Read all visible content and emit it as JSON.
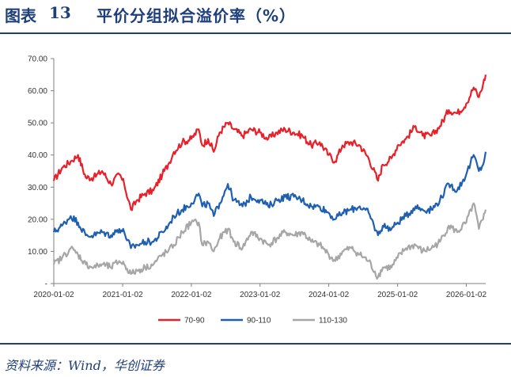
{
  "header": {
    "label": "图表",
    "number": "13",
    "title": "平价分组拟合溢价率（%）"
  },
  "source": "资料来源：Wind，华创证券",
  "colors": {
    "accent": "#1f3f7a"
  },
  "chart_data": {
    "type": "line",
    "title": "",
    "xlabel": "",
    "ylabel": "",
    "ylim": [
      0,
      70
    ],
    "y_ticks": [
      "-",
      "10.00",
      "20.00",
      "30.00",
      "40.00",
      "50.00",
      "60.00",
      "70.00"
    ],
    "x_ticks": [
      "2020-01-02",
      "2021-01-02",
      "2022-01-02",
      "2023-01-02",
      "2024-01-02",
      "2025-01-02",
      "2026-01-02"
    ],
    "x_range": [
      "2020-01-02",
      "2026-04-15"
    ],
    "grid": false,
    "legend_position": "bottom",
    "series": [
      {
        "name": "70-90",
        "color": "#e8202a",
        "points": [
          [
            "2020-01-02",
            32
          ],
          [
            "2020-02-15",
            36
          ],
          [
            "2020-04-01",
            38
          ],
          [
            "2020-05-10",
            40
          ],
          [
            "2020-06-20",
            33
          ],
          [
            "2020-08-01",
            33
          ],
          [
            "2020-09-15",
            35
          ],
          [
            "2020-11-01",
            31
          ],
          [
            "2020-12-15",
            34
          ],
          [
            "2021-01-10",
            31
          ],
          [
            "2021-02-15",
            23
          ],
          [
            "2021-03-20",
            26
          ],
          [
            "2021-05-01",
            28
          ],
          [
            "2021-06-15",
            29
          ],
          [
            "2021-08-01",
            34
          ],
          [
            "2021-09-01",
            37
          ],
          [
            "2021-10-01",
            41
          ],
          [
            "2021-11-15",
            44
          ],
          [
            "2022-01-02",
            45
          ],
          [
            "2022-02-10",
            48
          ],
          [
            "2022-03-01",
            43
          ],
          [
            "2022-04-01",
            45
          ],
          [
            "2022-05-01",
            41
          ],
          [
            "2022-06-01",
            47
          ],
          [
            "2022-07-15",
            50
          ],
          [
            "2022-08-15",
            48
          ],
          [
            "2022-10-01",
            46
          ],
          [
            "2022-11-15",
            48
          ],
          [
            "2023-01-02",
            47
          ],
          [
            "2023-02-15",
            45
          ],
          [
            "2023-04-01",
            47
          ],
          [
            "2023-05-15",
            48
          ],
          [
            "2023-07-01",
            47
          ],
          [
            "2023-08-15",
            46
          ],
          [
            "2023-10-01",
            43
          ],
          [
            "2023-11-15",
            44
          ],
          [
            "2024-01-02",
            40
          ],
          [
            "2024-02-05",
            38
          ],
          [
            "2024-03-15",
            43
          ],
          [
            "2024-05-01",
            44
          ],
          [
            "2024-06-15",
            43
          ],
          [
            "2024-08-01",
            39
          ],
          [
            "2024-09-20",
            32
          ],
          [
            "2024-10-15",
            37
          ],
          [
            "2024-12-01",
            39
          ],
          [
            "2025-01-02",
            43
          ],
          [
            "2025-02-15",
            45
          ],
          [
            "2025-04-07",
            49
          ],
          [
            "2025-05-15",
            46
          ],
          [
            "2025-07-01",
            46
          ],
          [
            "2025-08-15",
            49
          ],
          [
            "2025-10-01",
            54
          ],
          [
            "2025-11-15",
            53
          ],
          [
            "2026-01-02",
            56
          ],
          [
            "2026-02-10",
            61
          ],
          [
            "2026-03-10",
            58
          ],
          [
            "2026-04-01",
            62
          ],
          [
            "2026-04-15",
            65
          ]
        ]
      },
      {
        "name": "90-110",
        "color": "#1f5fb0",
        "points": [
          [
            "2020-01-02",
            16
          ],
          [
            "2020-02-15",
            18
          ],
          [
            "2020-04-01",
            21
          ],
          [
            "2020-05-10",
            19
          ],
          [
            "2020-06-20",
            15
          ],
          [
            "2020-08-01",
            15
          ],
          [
            "2020-09-15",
            16
          ],
          [
            "2020-11-01",
            15
          ],
          [
            "2020-12-15",
            17
          ],
          [
            "2021-01-10",
            16
          ],
          [
            "2021-02-15",
            11
          ],
          [
            "2021-03-20",
            12
          ],
          [
            "2021-05-01",
            13
          ],
          [
            "2021-06-15",
            13
          ],
          [
            "2021-08-01",
            16
          ],
          [
            "2021-09-01",
            18
          ],
          [
            "2021-10-01",
            21
          ],
          [
            "2021-11-15",
            23
          ],
          [
            "2022-01-02",
            25
          ],
          [
            "2022-02-10",
            28
          ],
          [
            "2022-03-01",
            24
          ],
          [
            "2022-04-01",
            25
          ],
          [
            "2022-05-01",
            21
          ],
          [
            "2022-06-01",
            25
          ],
          [
            "2022-07-15",
            31
          ],
          [
            "2022-08-15",
            26
          ],
          [
            "2022-10-01",
            24
          ],
          [
            "2022-11-15",
            27
          ],
          [
            "2023-01-02",
            26
          ],
          [
            "2023-02-15",
            24
          ],
          [
            "2023-04-01",
            26
          ],
          [
            "2023-05-15",
            27
          ],
          [
            "2023-07-01",
            27
          ],
          [
            "2023-08-15",
            26
          ],
          [
            "2023-10-01",
            24
          ],
          [
            "2023-11-15",
            24
          ],
          [
            "2024-01-02",
            22
          ],
          [
            "2024-02-05",
            20
          ],
          [
            "2024-03-15",
            22
          ],
          [
            "2024-05-01",
            23
          ],
          [
            "2024-06-15",
            24
          ],
          [
            "2024-08-01",
            22
          ],
          [
            "2024-09-20",
            15
          ],
          [
            "2024-10-15",
            18
          ],
          [
            "2024-12-01",
            17
          ],
          [
            "2025-01-02",
            19
          ],
          [
            "2025-02-15",
            21
          ],
          [
            "2025-04-07",
            24
          ],
          [
            "2025-05-15",
            23
          ],
          [
            "2025-07-01",
            23
          ],
          [
            "2025-08-15",
            26
          ],
          [
            "2025-10-01",
            31
          ],
          [
            "2025-11-15",
            29
          ],
          [
            "2026-01-02",
            34
          ],
          [
            "2026-02-10",
            40
          ],
          [
            "2026-03-10",
            35
          ],
          [
            "2026-04-01",
            37
          ],
          [
            "2026-04-15",
            41
          ]
        ]
      },
      {
        "name": "110-130",
        "color": "#a6a6a6",
        "points": [
          [
            "2020-01-02",
            6
          ],
          [
            "2020-02-15",
            8
          ],
          [
            "2020-04-01",
            11
          ],
          [
            "2020-05-10",
            9
          ],
          [
            "2020-06-20",
            6
          ],
          [
            "2020-08-01",
            5
          ],
          [
            "2020-09-15",
            6
          ],
          [
            "2020-11-01",
            5
          ],
          [
            "2020-12-15",
            7
          ],
          [
            "2021-01-10",
            6
          ],
          [
            "2021-02-15",
            3
          ],
          [
            "2021-03-20",
            4
          ],
          [
            "2021-05-01",
            5
          ],
          [
            "2021-06-15",
            6
          ],
          [
            "2021-08-01",
            9
          ],
          [
            "2021-09-01",
            10
          ],
          [
            "2021-10-01",
            12
          ],
          [
            "2021-11-15",
            16
          ],
          [
            "2022-01-02",
            19
          ],
          [
            "2022-02-10",
            19
          ],
          [
            "2022-03-01",
            12
          ],
          [
            "2022-04-01",
            13
          ],
          [
            "2022-05-01",
            10
          ],
          [
            "2022-06-01",
            14
          ],
          [
            "2022-07-15",
            17
          ],
          [
            "2022-08-15",
            13
          ],
          [
            "2022-10-01",
            11
          ],
          [
            "2022-11-15",
            16
          ],
          [
            "2023-01-02",
            14
          ],
          [
            "2023-02-15",
            12
          ],
          [
            "2023-04-01",
            14
          ],
          [
            "2023-05-15",
            16
          ],
          [
            "2023-07-01",
            15
          ],
          [
            "2023-08-15",
            16
          ],
          [
            "2023-10-01",
            13
          ],
          [
            "2023-11-15",
            12
          ],
          [
            "2024-01-02",
            9
          ],
          [
            "2024-02-05",
            7
          ],
          [
            "2024-03-15",
            10
          ],
          [
            "2024-05-01",
            11
          ],
          [
            "2024-06-15",
            9
          ],
          [
            "2024-08-01",
            7
          ],
          [
            "2024-09-20",
            2
          ],
          [
            "2024-10-15",
            5
          ],
          [
            "2024-12-01",
            5
          ],
          [
            "2025-01-02",
            8
          ],
          [
            "2025-02-15",
            11
          ],
          [
            "2025-04-07",
            12
          ],
          [
            "2025-05-15",
            10
          ],
          [
            "2025-07-01",
            11
          ],
          [
            "2025-08-15",
            13
          ],
          [
            "2025-10-01",
            18
          ],
          [
            "2025-11-15",
            16
          ],
          [
            "2026-01-02",
            19
          ],
          [
            "2026-02-10",
            25
          ],
          [
            "2026-03-10",
            17
          ],
          [
            "2026-04-01",
            20
          ],
          [
            "2026-04-15",
            23
          ]
        ]
      }
    ]
  }
}
